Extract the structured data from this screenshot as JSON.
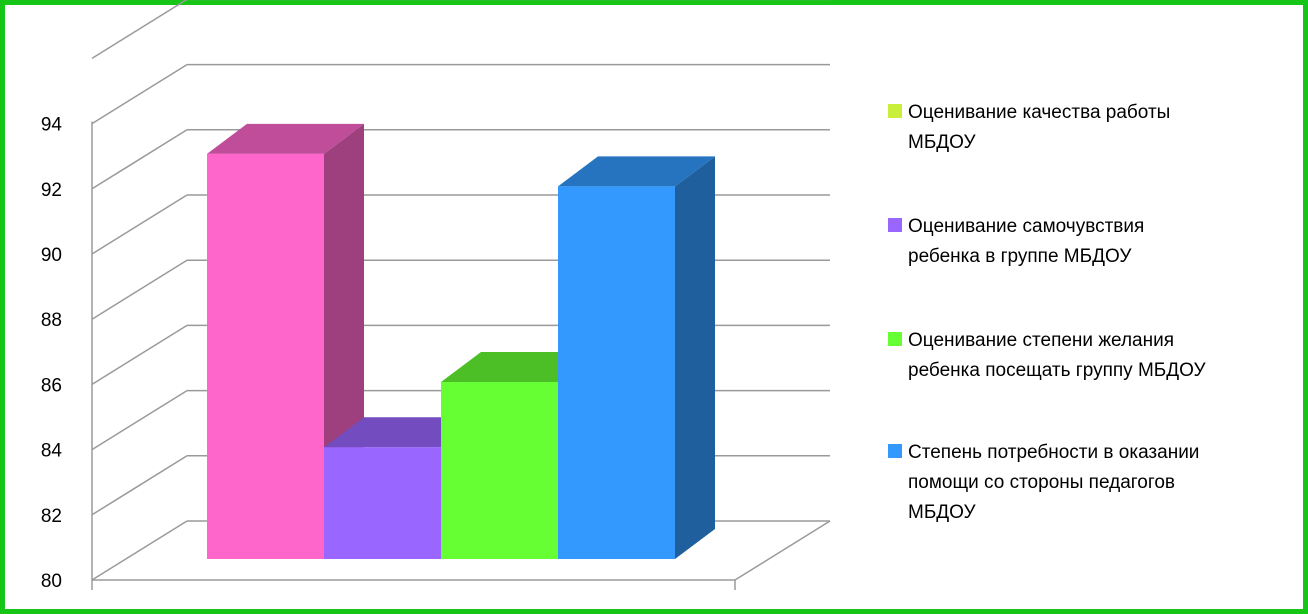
{
  "chart_data": {
    "type": "bar",
    "title": "",
    "xlabel": "",
    "ylabel": "",
    "ylim": [
      80,
      94
    ],
    "yticks": [
      "80",
      "82",
      "84",
      "86",
      "88",
      "90",
      "92",
      "94"
    ],
    "grid": true,
    "three_d": true,
    "legend_position": "right",
    "series": [
      {
        "name": "Оценивание качества работы МБДОУ",
        "value": null,
        "color": "#c9ef3a",
        "legend_lines": [
          "Оценивание качества работы",
          "МБДОУ"
        ]
      },
      {
        "name": "Оценивание самочувствия ребенка в группе МБДОУ",
        "value": 85.3,
        "color": "#9966ff",
        "legend_lines": [
          "Оценивание самочувствия",
          "ребенка в группе МБДОУ"
        ]
      },
      {
        "name": "Оценивание степени желания ребенка посещать группу МБДОУ",
        "value": 87.3,
        "color": "#66ff33",
        "legend_lines": [
          "Оценивание степени желания",
          "ребенка посещать группу МБДОУ"
        ]
      },
      {
        "name": "Степень потребности в оказании помощи со стороны педагогов МБДОУ",
        "value": 93.3,
        "color": "#3399ff",
        "legend_lines": [
          "Степень потребности в оказании",
          "помощи со стороны педагогов",
          "МБДОУ"
        ]
      }
    ],
    "unlabeled_bar": {
      "value": 94.3,
      "color": "#ff66cc"
    }
  }
}
